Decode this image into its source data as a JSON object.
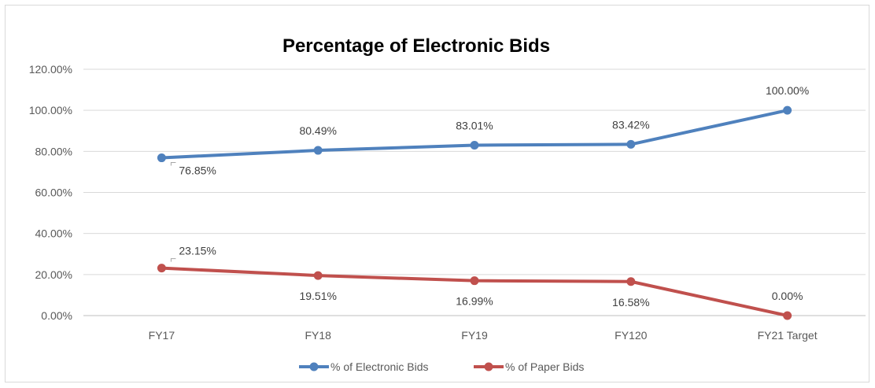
{
  "chart_data": {
    "type": "line",
    "title": "Percentage of Electronic Bids",
    "categories": [
      "FY17",
      "FY18",
      "FY19",
      "FY120",
      "FY21 Target"
    ],
    "series": [
      {
        "name": "% of Electronic Bids",
        "values": [
          76.85,
          80.49,
          83.01,
          83.42,
          100.0
        ],
        "labels": [
          "76.85%",
          "80.49%",
          "83.01%",
          "83.42%",
          "100.00%"
        ],
        "color": "#4f81bd"
      },
      {
        "name": "% of Paper Bids",
        "values": [
          23.15,
          19.51,
          16.99,
          16.58,
          0.0
        ],
        "labels": [
          "23.15%",
          "19.51%",
          "16.99%",
          "16.58%",
          "0.00%"
        ],
        "color": "#c0504d"
      }
    ],
    "ylim": [
      0,
      120
    ],
    "yticks": [
      0,
      20,
      40,
      60,
      80,
      100,
      120
    ],
    "ytick_labels": [
      "0.00%",
      "20.00%",
      "40.00%",
      "60.00%",
      "80.00%",
      "100.00%",
      "120.00%"
    ],
    "grid": true,
    "legend": "bottom",
    "xlabel": "",
    "ylabel": ""
  }
}
